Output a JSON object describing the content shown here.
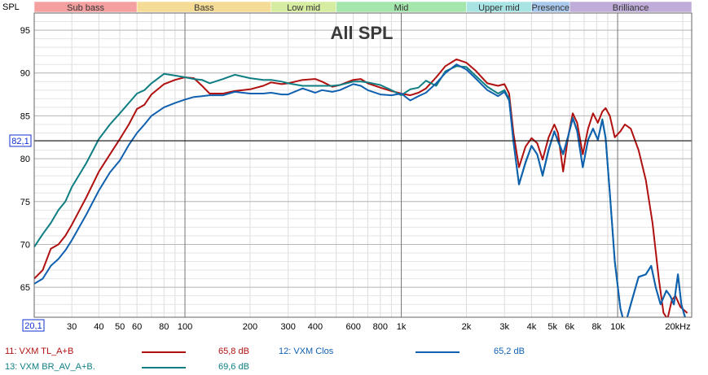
{
  "chart_data": {
    "type": "line",
    "title": "All SPL",
    "ylabel": "SPL",
    "x_scale": "log",
    "xlim": [
      20.1,
      22000
    ],
    "ylim": [
      61.5,
      97
    ],
    "y_ticks": [
      95,
      90,
      85,
      80,
      75,
      70,
      65
    ],
    "y_marker": {
      "value": 82.1,
      "label": "82,1"
    },
    "x_start_label": "20,1",
    "x_ticks": [
      {
        "v": 30,
        "label": "30"
      },
      {
        "v": 40,
        "label": "40"
      },
      {
        "v": 50,
        "label": "50"
      },
      {
        "v": 60,
        "label": "60"
      },
      {
        "v": 80,
        "label": "80"
      },
      {
        "v": 100,
        "label": "100"
      },
      {
        "v": 200,
        "label": "200"
      },
      {
        "v": 300,
        "label": "300"
      },
      {
        "v": 400,
        "label": "400"
      },
      {
        "v": 600,
        "label": "600"
      },
      {
        "v": 800,
        "label": "800"
      },
      {
        "v": 1000,
        "label": "1k"
      },
      {
        "v": 2000,
        "label": "2k"
      },
      {
        "v": 3000,
        "label": "3k"
      },
      {
        "v": 4000,
        "label": "4k"
      },
      {
        "v": 5000,
        "label": "5k"
      },
      {
        "v": 6000,
        "label": "6k"
      },
      {
        "v": 8000,
        "label": "8k"
      },
      {
        "v": 10000,
        "label": "10k"
      },
      {
        "v": 20000,
        "label": "20kHz"
      }
    ],
    "bands": [
      {
        "label": "Sub bass",
        "from": 20.1,
        "to": 60,
        "color": "#f5a0a0"
      },
      {
        "label": "Bass",
        "from": 60,
        "to": 250,
        "color": "#f5dc96"
      },
      {
        "label": "Low mid",
        "from": 250,
        "to": 500,
        "color": "#d6eca0"
      },
      {
        "label": "Mid",
        "from": 500,
        "to": 2000,
        "color": "#a4e6ac"
      },
      {
        "label": "Upper mid",
        "from": 2000,
        "to": 4000,
        "color": "#a8e4e4"
      },
      {
        "label": "Presence",
        "from": 4000,
        "to": 6000,
        "color": "#a8c8ec"
      },
      {
        "label": "Brilliance",
        "from": 6000,
        "to": 22000,
        "color": "#c0acd8"
      }
    ],
    "series": [
      {
        "name": "11: VXM TL_A+B",
        "value_label": "65,8 dB",
        "color": "#b01010",
        "points": [
          [
            20.1,
            66
          ],
          [
            22,
            67
          ],
          [
            24,
            69.5
          ],
          [
            26,
            70
          ],
          [
            28,
            71
          ],
          [
            30,
            72.3
          ],
          [
            35,
            75.5
          ],
          [
            40,
            78.5
          ],
          [
            45,
            80.5
          ],
          [
            50,
            82.3
          ],
          [
            55,
            84
          ],
          [
            60,
            85.8
          ],
          [
            65,
            86.3
          ],
          [
            70,
            87.5
          ],
          [
            80,
            88.7
          ],
          [
            90,
            89.2
          ],
          [
            100,
            89.5
          ],
          [
            110,
            89.4
          ],
          [
            120,
            88.5
          ],
          [
            130,
            87.6
          ],
          [
            150,
            87.6
          ],
          [
            170,
            87.9
          ],
          [
            200,
            88.1
          ],
          [
            230,
            88.5
          ],
          [
            250,
            88.9
          ],
          [
            280,
            88.7
          ],
          [
            300,
            88.8
          ],
          [
            350,
            89.2
          ],
          [
            400,
            89.3
          ],
          [
            430,
            89
          ],
          [
            480,
            88.4
          ],
          [
            520,
            88.6
          ],
          [
            600,
            89.2
          ],
          [
            650,
            89.3
          ],
          [
            700,
            88.8
          ],
          [
            800,
            88.3
          ],
          [
            900,
            87.9
          ],
          [
            1000,
            87.6
          ],
          [
            1100,
            87.4
          ],
          [
            1200,
            87.7
          ],
          [
            1300,
            88.2
          ],
          [
            1450,
            89.5
          ],
          [
            1600,
            90.8
          ],
          [
            1800,
            91.6
          ],
          [
            2000,
            91.2
          ],
          [
            2200,
            90.3
          ],
          [
            2500,
            88.8
          ],
          [
            2800,
            88.5
          ],
          [
            3000,
            88.7
          ],
          [
            3150,
            87.6
          ],
          [
            3300,
            83
          ],
          [
            3500,
            79
          ],
          [
            3750,
            81.4
          ],
          [
            4000,
            82.4
          ],
          [
            4250,
            81.8
          ],
          [
            4500,
            79.9
          ],
          [
            4800,
            82.5
          ],
          [
            5100,
            84
          ],
          [
            5300,
            83
          ],
          [
            5600,
            78.5
          ],
          [
            5900,
            82.5
          ],
          [
            6200,
            85.3
          ],
          [
            6500,
            84.2
          ],
          [
            6900,
            80.5
          ],
          [
            7300,
            83.5
          ],
          [
            7700,
            85.3
          ],
          [
            8100,
            84.2
          ],
          [
            8500,
            85.5
          ],
          [
            8800,
            85.9
          ],
          [
            9200,
            85
          ],
          [
            9700,
            82.5
          ],
          [
            10300,
            83.2
          ],
          [
            10800,
            84
          ],
          [
            11500,
            83.5
          ],
          [
            12500,
            81
          ],
          [
            13500,
            77.5
          ],
          [
            14500,
            72.5
          ],
          [
            15500,
            66
          ],
          [
            16300,
            62
          ],
          [
            17000,
            61.3
          ],
          [
            17800,
            63.5
          ],
          [
            18500,
            64
          ],
          [
            19500,
            62.7
          ],
          [
            21000,
            62
          ]
        ]
      },
      {
        "name": "13: VXM BR_AV_A+B.",
        "value_label": "69,6 dB",
        "color": "#0e7e82",
        "points": [
          [
            20.1,
            69.7
          ],
          [
            22,
            71.2
          ],
          [
            24,
            72.5
          ],
          [
            26,
            74
          ],
          [
            28,
            75
          ],
          [
            30,
            76.7
          ],
          [
            35,
            79.5
          ],
          [
            40,
            82.3
          ],
          [
            45,
            84
          ],
          [
            50,
            85.3
          ],
          [
            55,
            86.5
          ],
          [
            60,
            87.6
          ],
          [
            65,
            88
          ],
          [
            70,
            88.8
          ],
          [
            80,
            89.9
          ],
          [
            90,
            89.7
          ],
          [
            100,
            89.5
          ],
          [
            110,
            89.3
          ],
          [
            120,
            89.2
          ],
          [
            130,
            88.8
          ],
          [
            150,
            89.3
          ],
          [
            170,
            89.8
          ],
          [
            200,
            89.4
          ],
          [
            230,
            89.2
          ],
          [
            250,
            89.2
          ],
          [
            280,
            89
          ],
          [
            300,
            88.8
          ],
          [
            350,
            88.5
          ],
          [
            400,
            88.5
          ],
          [
            430,
            88.5
          ],
          [
            480,
            88.5
          ],
          [
            520,
            88.6
          ],
          [
            600,
            89
          ],
          [
            650,
            89
          ],
          [
            700,
            88.9
          ],
          [
            800,
            88.6
          ],
          [
            900,
            88
          ],
          [
            1000,
            87.4
          ],
          [
            1100,
            88.1
          ],
          [
            1200,
            88.3
          ],
          [
            1300,
            89.1
          ],
          [
            1450,
            88.5
          ],
          [
            1600,
            90.2
          ],
          [
            1800,
            90.8
          ],
          [
            2000,
            90.7
          ],
          [
            2200,
            89.7
          ],
          [
            2500,
            88.4
          ],
          [
            2800,
            87.6
          ],
          [
            3000,
            88
          ],
          [
            3150,
            87
          ],
          [
            3300,
            82
          ],
          [
            3500,
            77
          ],
          [
            3750,
            79.5
          ],
          [
            4000,
            81.5
          ],
          [
            4250,
            80.5
          ],
          [
            4500,
            78
          ],
          [
            4800,
            81
          ],
          [
            5100,
            83.2
          ],
          [
            5300,
            82
          ],
          [
            5600,
            80.5
          ],
          [
            5900,
            82.5
          ],
          [
            6200,
            84.8
          ],
          [
            6500,
            83.3
          ],
          [
            6900,
            79
          ],
          [
            7300,
            82.2
          ],
          [
            7700,
            83.5
          ],
          [
            8100,
            82.2
          ],
          [
            8500,
            84.6
          ],
          [
            8800,
            82.5
          ],
          [
            9200,
            76
          ],
          [
            9700,
            68
          ],
          [
            10300,
            62.5
          ],
          [
            10800,
            60.5
          ],
          [
            11500,
            63
          ],
          [
            12500,
            66.2
          ],
          [
            13500,
            66.5
          ],
          [
            14300,
            67.5
          ],
          [
            15000,
            65
          ],
          [
            15800,
            63
          ],
          [
            16800,
            64.6
          ],
          [
            17500,
            64
          ],
          [
            18200,
            63
          ],
          [
            19000,
            66.5
          ],
          [
            19700,
            63
          ],
          [
            20500,
            61.5
          ]
        ]
      },
      {
        "name": "12: VXM Clos",
        "value_label": "65,2 dB",
        "color": "#1060b0",
        "points": [
          [
            20.1,
            65.4
          ],
          [
            22,
            66
          ],
          [
            24,
            67.5
          ],
          [
            26,
            68.3
          ],
          [
            28,
            69.3
          ],
          [
            30,
            70.5
          ],
          [
            35,
            73.5
          ],
          [
            40,
            76.3
          ],
          [
            45,
            78.4
          ],
          [
            50,
            79.8
          ],
          [
            55,
            81.6
          ],
          [
            60,
            83
          ],
          [
            65,
            84
          ],
          [
            70,
            85
          ],
          [
            80,
            86
          ],
          [
            90,
            86.5
          ],
          [
            100,
            86.9
          ],
          [
            110,
            87.2
          ],
          [
            120,
            87.3
          ],
          [
            130,
            87.4
          ],
          [
            150,
            87.4
          ],
          [
            170,
            87.8
          ],
          [
            200,
            87.6
          ],
          [
            230,
            87.6
          ],
          [
            250,
            87.7
          ],
          [
            280,
            87.5
          ],
          [
            300,
            87.5
          ],
          [
            350,
            88.2
          ],
          [
            400,
            87.7
          ],
          [
            430,
            88
          ],
          [
            480,
            87.8
          ],
          [
            520,
            88
          ],
          [
            600,
            88.7
          ],
          [
            650,
            88.5
          ],
          [
            700,
            88
          ],
          [
            800,
            87.5
          ],
          [
            900,
            87.4
          ],
          [
            1000,
            87.6
          ],
          [
            1100,
            86.8
          ],
          [
            1200,
            87.3
          ],
          [
            1300,
            87.7
          ],
          [
            1450,
            88.8
          ],
          [
            1600,
            90
          ],
          [
            1800,
            91
          ],
          [
            2000,
            90.4
          ],
          [
            2200,
            89.4
          ],
          [
            2500,
            88
          ],
          [
            2800,
            87.3
          ],
          [
            3000,
            87.8
          ],
          [
            3150,
            86.8
          ],
          [
            3300,
            82
          ],
          [
            3500,
            77
          ],
          [
            3750,
            79.6
          ],
          [
            4000,
            81.5
          ],
          [
            4250,
            80.5
          ],
          [
            4500,
            78.1
          ],
          [
            4800,
            81.1
          ],
          [
            5100,
            83.2
          ],
          [
            5300,
            82.1
          ],
          [
            5600,
            80.6
          ],
          [
            5900,
            82.6
          ],
          [
            6200,
            84.7
          ],
          [
            6500,
            83.2
          ],
          [
            6900,
            79
          ],
          [
            7300,
            82.2
          ],
          [
            7700,
            83.5
          ],
          [
            8100,
            82.2
          ],
          [
            8500,
            84.5
          ],
          [
            8800,
            82.4
          ],
          [
            9200,
            76
          ],
          [
            9700,
            68
          ],
          [
            10300,
            62.5
          ],
          [
            10800,
            60.5
          ],
          [
            11500,
            63
          ],
          [
            12500,
            66.2
          ],
          [
            13500,
            66.5
          ],
          [
            14300,
            67.5
          ],
          [
            15000,
            65
          ],
          [
            15800,
            63
          ],
          [
            16800,
            64.6
          ],
          [
            17500,
            64
          ],
          [
            18200,
            63
          ],
          [
            19000,
            66.5
          ],
          [
            19700,
            63
          ],
          [
            20500,
            61.5
          ]
        ]
      }
    ]
  },
  "legend": [
    {
      "name": "11: VXM TL_A+B",
      "value": "65,8 dB",
      "color": "#b01010"
    },
    {
      "name": "12: VXM Clos",
      "value": "65,2 dB",
      "color": "#1060b0"
    },
    {
      "name": "13: VXM BR_AV_A+B.",
      "value": "69,6 dB",
      "color": "#0e7e82"
    }
  ]
}
